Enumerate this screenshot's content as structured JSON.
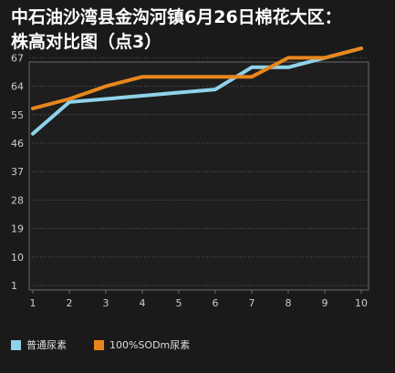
{
  "title_line1": "中石油沙湾县金沟河镇6月26日棉花大区：",
  "title_line2": "株高对比图（点3）",
  "colors": {
    "background": "#1a1a1a",
    "plot_bg": "#1e1e1e",
    "grid": "#5a5a5a",
    "series1": "#8fd3ea",
    "series2": "#e8861d"
  },
  "chart_data": {
    "type": "line",
    "x": [
      1,
      2,
      3,
      4,
      5,
      6,
      7,
      8,
      9,
      10
    ],
    "y_ticks": [
      1,
      10,
      19,
      28,
      37,
      46,
      55,
      64,
      67
    ],
    "x_ticks": [
      "1",
      "2",
      "3",
      "4",
      "5",
      "6",
      "7",
      "8",
      "9",
      "10"
    ],
    "series": [
      {
        "name": "普通尿素",
        "color": "#8fd3ea",
        "values": [
          49,
          59,
          60,
          61,
          62,
          63,
          66,
          66,
          67,
          68
        ]
      },
      {
        "name": "100%SODm尿素",
        "color": "#e8861d",
        "values": [
          57,
          60,
          64,
          65,
          65,
          65,
          65,
          67,
          67,
          68
        ]
      }
    ],
    "legend_position": "bottom-left",
    "grid": true
  }
}
